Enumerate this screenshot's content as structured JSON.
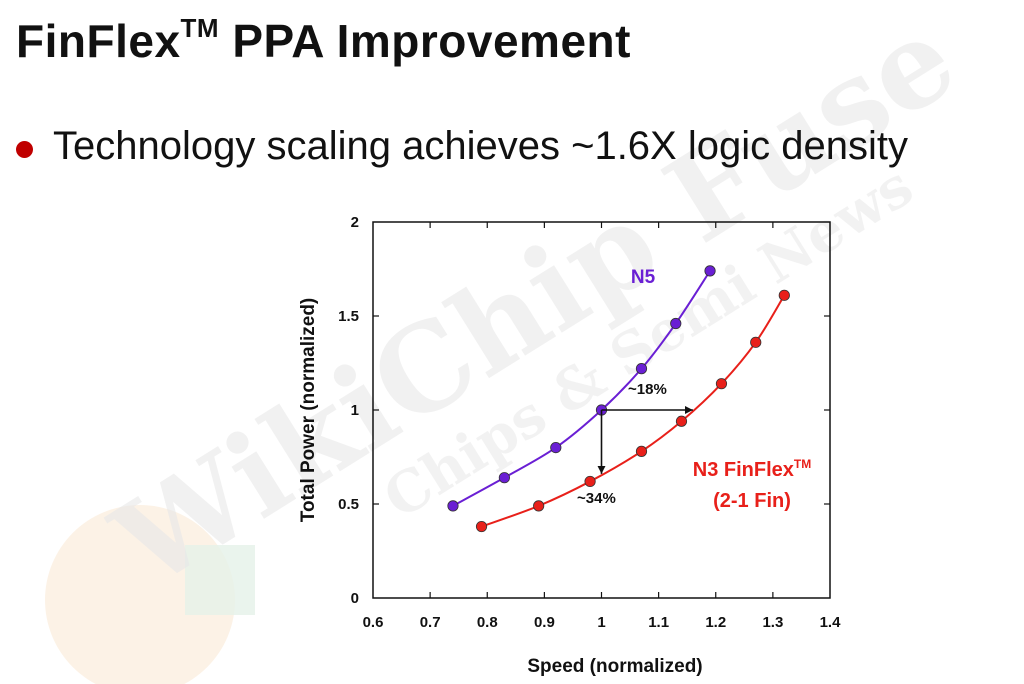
{
  "slide": {
    "title": "FinFlex",
    "title_sup": "TM",
    "title_rest": " PPA Improvement",
    "bullet_text": "Technology scaling achieves ~1.6X logic density"
  },
  "watermark": {
    "text_main": "WikiChip Fuse",
    "text_sub": "Chips & Semi News"
  },
  "colors": {
    "n5": "#6a1fd4",
    "n3": "#e8201a",
    "bullet": "#c00000"
  },
  "chart_data": {
    "type": "line",
    "xlabel": "Speed (normalized)",
    "ylabel": "Total Power (normalized)",
    "xlim": [
      0.6,
      1.4
    ],
    "ylim": [
      0,
      2
    ],
    "xticks": [
      "0.6",
      "0.7",
      "0.8",
      "0.9",
      "1",
      "1.1",
      "1.2",
      "1.3",
      "1.4"
    ],
    "yticks": [
      "0",
      "0.5",
      "1",
      "1.5",
      "2"
    ],
    "grid": false,
    "series": [
      {
        "name": "N5",
        "color": "#6a1fd4",
        "x": [
          0.74,
          0.83,
          0.92,
          1.0,
          1.07,
          1.13,
          1.19
        ],
        "y": [
          0.49,
          0.64,
          0.8,
          1.0,
          1.22,
          1.46,
          1.74
        ]
      },
      {
        "name": "N3 FinFlex",
        "name_sup": "TM",
        "name_line2": "(2-1 Fin)",
        "color": "#e8201a",
        "x": [
          0.79,
          0.89,
          0.98,
          1.07,
          1.14,
          1.21,
          1.27,
          1.32
        ],
        "y": [
          0.38,
          0.49,
          0.62,
          0.78,
          0.94,
          1.14,
          1.36,
          1.61
        ]
      }
    ],
    "annotations": [
      {
        "text": "~18%",
        "x": 1.0,
        "y": 1.0,
        "direction": "right",
        "to": 1.16
      },
      {
        "text": "~34%",
        "x": 1.0,
        "y": 1.0,
        "direction": "down",
        "to": 0.66
      }
    ]
  }
}
